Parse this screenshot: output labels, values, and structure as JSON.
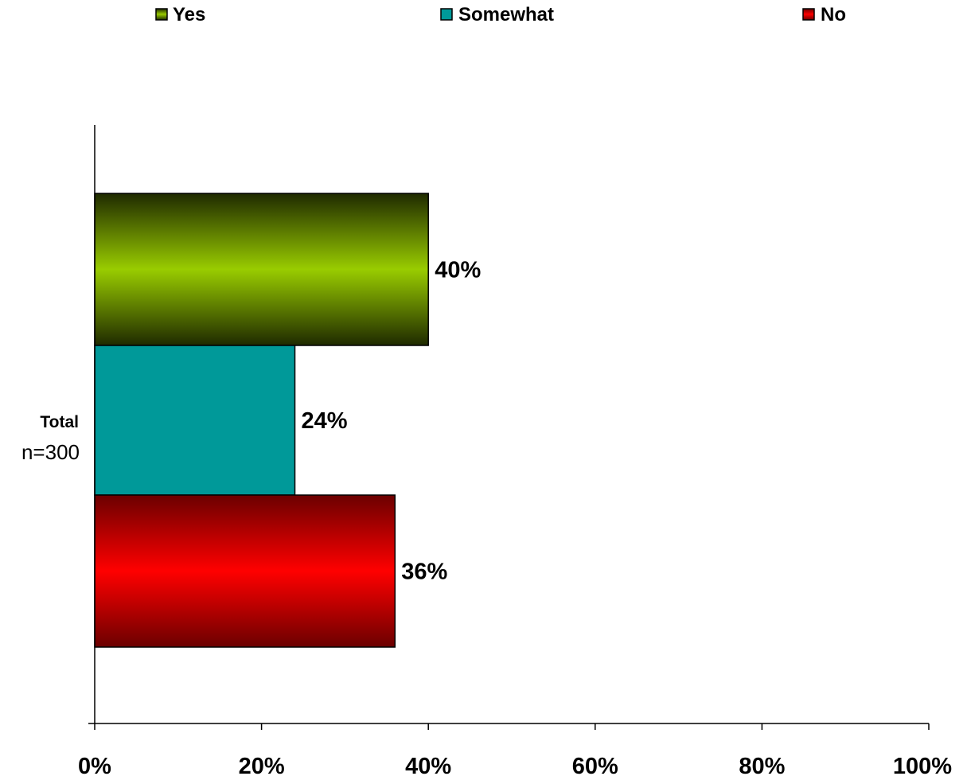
{
  "chart_data": {
    "type": "bar",
    "orientation": "horizontal",
    "categories": [
      "Total"
    ],
    "category_subtitles": [
      "n=300"
    ],
    "series": [
      {
        "name": "Yes",
        "values": [
          40
        ],
        "label": "40%",
        "color": "#99cc00"
      },
      {
        "name": "Somewhat",
        "values": [
          24
        ],
        "label": "24%",
        "color": "#009999"
      },
      {
        "name": "No",
        "values": [
          36
        ],
        "label": "36%",
        "color": "#ff0000"
      }
    ],
    "xlim": [
      0,
      100
    ],
    "x_ticks": [
      0,
      20,
      40,
      60,
      80,
      100
    ],
    "x_tick_labels": [
      "0%",
      "20%",
      "40%",
      "60%",
      "80%",
      "100%"
    ],
    "legend_position": "top",
    "grid": false
  }
}
